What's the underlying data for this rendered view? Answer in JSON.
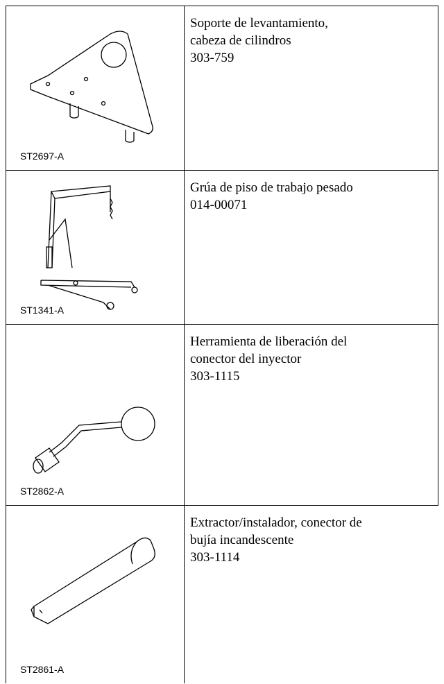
{
  "table": {
    "rows": [
      {
        "image_label": "ST2697-A",
        "lines": [
          "Soporte de levantamiento,",
          "cabeza de cilindros",
          "303-759"
        ]
      },
      {
        "image_label": "ST1341-A",
        "lines": [
          "Grúa de piso de trabajo pesado",
          "014-00071"
        ]
      },
      {
        "image_label": "ST2862-A",
        "lines": [
          "Herramienta de liberación del",
          "conector del inyector",
          "303-1115"
        ]
      },
      {
        "image_label": "ST2861-A",
        "lines": [
          "Extractor/instalador, conector de",
          "bujía incandescente",
          "303-1114"
        ]
      }
    ]
  }
}
